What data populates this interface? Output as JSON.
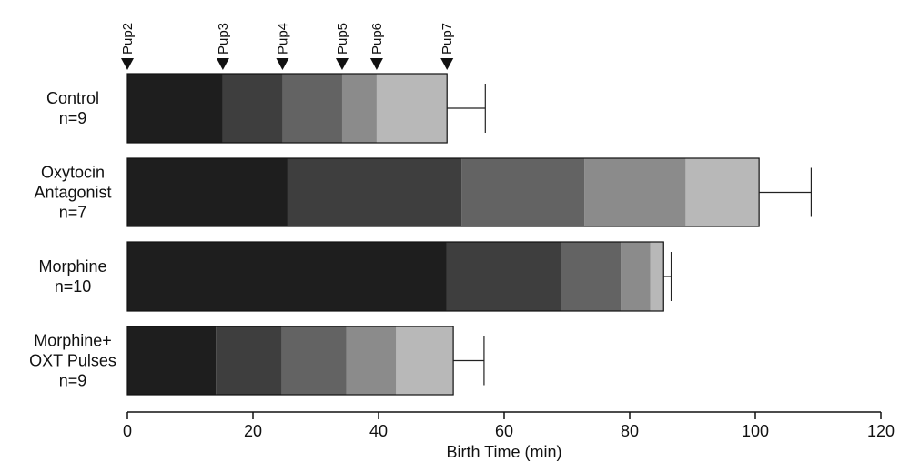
{
  "chart_data": {
    "type": "bar",
    "orientation": "horizontal-stacked",
    "xlabel": "Birth Time (min)",
    "xlim": [
      0,
      120
    ],
    "xticks": [
      "0",
      "20",
      "40",
      "60",
      "80",
      "100",
      "120"
    ],
    "markers_top": [
      {
        "label": "Pup2",
        "x": 0
      },
      {
        "label": "Pup3",
        "x": 15.2
      },
      {
        "label": "Pup4",
        "x": 24.7
      },
      {
        "label": "Pup5",
        "x": 34.2
      },
      {
        "label": "Pup6",
        "x": 39.7
      },
      {
        "label": "Pup7",
        "x": 50.9
      }
    ],
    "segment_colors": [
      "#1e1e1e",
      "#3e3e3e",
      "#636363",
      "#8b8b8b",
      "#b8b8b8",
      "#e4e4e4"
    ],
    "groups": [
      {
        "label_lines": [
          "Control",
          "n=9"
        ],
        "cumulative": [
          15.2,
          24.7,
          34.2,
          39.7,
          50.9
        ],
        "error": 57.0
      },
      {
        "label_lines": [
          "Oxytocin",
          "Antagonist",
          "n=7"
        ],
        "cumulative": [
          25.5,
          53.2,
          72.8,
          88.9,
          100.6
        ],
        "error": 108.9
      },
      {
        "label_lines": [
          "Morphine",
          "n=10"
        ],
        "cumulative": [
          50.8,
          69.1,
          78.6,
          83.3,
          85.4
        ],
        "error": 86.6
      },
      {
        "label_lines": [
          "Morphine+",
          "OXT Pulses",
          "n=9"
        ],
        "cumulative": [
          14.1,
          24.6,
          34.9,
          42.8,
          51.9
        ],
        "error": 56.8
      }
    ]
  }
}
